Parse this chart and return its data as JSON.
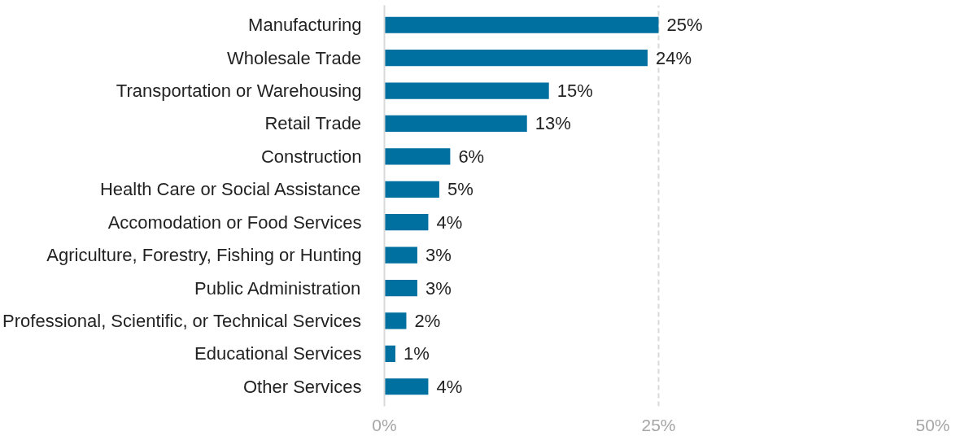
{
  "chart_data": {
    "type": "bar",
    "orientation": "horizontal",
    "categories": [
      "Manufacturing",
      "Wholesale Trade",
      "Transportation or Warehousing",
      "Retail Trade",
      "Construction",
      "Health Care or Social Assistance",
      "Accomodation or Food Services",
      "Agriculture, Forestry, Fishing or Hunting",
      "Public Administration",
      "Professional, Scientific, or Technical Services",
      "Educational Services",
      "Other Services"
    ],
    "values": [
      25,
      24,
      15,
      13,
      6,
      5,
      4,
      3,
      3,
      2,
      1,
      4
    ],
    "value_labels": [
      "25%",
      "24%",
      "15%",
      "13%",
      "6%",
      "5%",
      "4%",
      "3%",
      "3%",
      "2%",
      "1%",
      "4%"
    ],
    "color": "#0070a0",
    "xlim": [
      0,
      50
    ],
    "xticks": [
      {
        "value": 0,
        "label": "0%"
      },
      {
        "value": 25,
        "label": "25%"
      },
      {
        "value": 50,
        "label": "50%"
      }
    ],
    "grid": "x"
  }
}
